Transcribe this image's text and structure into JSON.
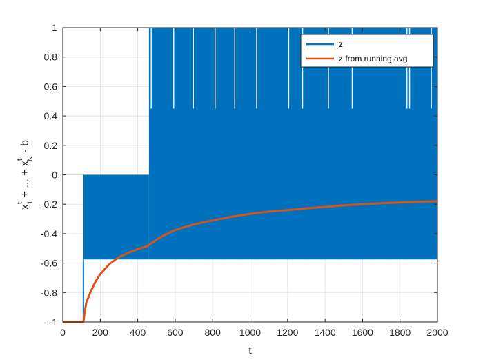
{
  "chart_data": {
    "type": "line",
    "title": "",
    "xlabel": "t",
    "ylabel_parts": {
      "x1": "x",
      "x1_sup": "t",
      "x1_sub": "1",
      "middle": " + ... + ",
      "xN": "x",
      "xN_sup": "t",
      "xN_sub": "N",
      "tail": " - b"
    },
    "xlim": [
      0,
      2000
    ],
    "ylim": [
      -1,
      1
    ],
    "xticks": [
      0,
      200,
      400,
      600,
      800,
      1000,
      1200,
      1400,
      1600,
      1800,
      2000
    ],
    "yticks": [
      -1,
      -0.8,
      -0.6,
      -0.4,
      -0.2,
      0,
      0.2,
      0.4,
      0.6,
      0.8,
      1
    ],
    "xtick_labels": [
      "0",
      "200",
      "400",
      "600",
      "800",
      "1000",
      "1200",
      "1400",
      "1600",
      "1800",
      "2000"
    ],
    "ytick_labels": [
      "-1",
      "-0.8",
      "-0.6",
      "-0.4",
      "-0.2",
      "0",
      "0.2",
      "0.4",
      "0.6",
      "0.8",
      "1"
    ],
    "grid": true,
    "legend_position": "top-right",
    "series": [
      {
        "name": "z",
        "color": "#0072BD",
        "style": "oscillating band",
        "segments": [
          {
            "x": [
              0,
              110
            ],
            "low": -1,
            "high": -1
          },
          {
            "x": [
              110,
              460
            ],
            "low": -0.575,
            "high": 0.0
          },
          {
            "x": [
              460,
              2000
            ],
            "low": -0.575,
            "high": 1.0
          }
        ],
        "gaps_above_045": [
          472,
          592,
          697,
          813,
          918,
          1035,
          1206,
          1280,
          1418,
          1545,
          1837,
          1851,
          1967
        ]
      },
      {
        "name": "z from running avg",
        "color": "#D95319",
        "points": [
          [
            0,
            -1
          ],
          [
            110,
            -1
          ],
          [
            115,
            -0.95
          ],
          [
            125,
            -0.87
          ],
          [
            150,
            -0.79
          ],
          [
            175,
            -0.725
          ],
          [
            200,
            -0.675
          ],
          [
            250,
            -0.605
          ],
          [
            300,
            -0.56
          ],
          [
            350,
            -0.53
          ],
          [
            400,
            -0.505
          ],
          [
            450,
            -0.485
          ],
          [
            480,
            -0.46
          ],
          [
            500,
            -0.44
          ],
          [
            550,
            -0.405
          ],
          [
            600,
            -0.375
          ],
          [
            650,
            -0.355
          ],
          [
            700,
            -0.337
          ],
          [
            800,
            -0.31
          ],
          [
            900,
            -0.285
          ],
          [
            1000,
            -0.265
          ],
          [
            1100,
            -0.25
          ],
          [
            1200,
            -0.24
          ],
          [
            1300,
            -0.228
          ],
          [
            1400,
            -0.218
          ],
          [
            1500,
            -0.208
          ],
          [
            1600,
            -0.2
          ],
          [
            1700,
            -0.193
          ],
          [
            1800,
            -0.188
          ],
          [
            1900,
            -0.184
          ],
          [
            2000,
            -0.18
          ]
        ]
      }
    ]
  }
}
